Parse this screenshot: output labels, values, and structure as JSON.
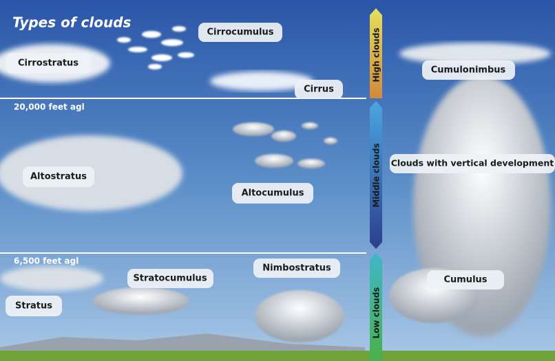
{
  "title": "Types of clouds",
  "altitudes": [
    "20,000 feet agl",
    "6,500 feet agl"
  ],
  "bands": [
    "High clouds",
    "Middle clouds",
    "Low clouds"
  ],
  "clouds": [
    "Cirrostratus",
    "Cirrocumulus",
    "Cirrus",
    "Cumulonimbus",
    "Altostratus",
    "Altocumulus",
    "Clouds with vertical development",
    "Stratocumulus",
    "Nimbostratus",
    "Stratus",
    "Cumulus"
  ]
}
